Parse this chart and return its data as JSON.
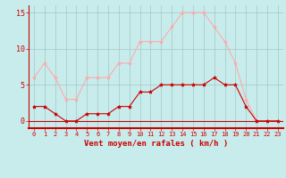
{
  "x": [
    0,
    1,
    2,
    3,
    4,
    5,
    6,
    7,
    8,
    9,
    10,
    11,
    12,
    13,
    14,
    15,
    16,
    17,
    18,
    19,
    20,
    21,
    22,
    23
  ],
  "wind_avg": [
    2,
    2,
    1,
    0,
    0,
    1,
    1,
    1,
    2,
    2,
    4,
    4,
    5,
    5,
    5,
    5,
    5,
    6,
    5,
    5,
    2,
    0,
    0,
    0
  ],
  "wind_gust": [
    6,
    8,
    6,
    3,
    3,
    6,
    6,
    6,
    8,
    8,
    11,
    11,
    11,
    13,
    15,
    15,
    15,
    13,
    11,
    8,
    3,
    0,
    0,
    0
  ],
  "bg_color": "#c8ecec",
  "grid_color": "#a0c8c8",
  "line_avg_color": "#cc0000",
  "line_gust_color": "#ffaaaa",
  "marker": "*",
  "xlabel": "Vent moyen/en rafales ( km/h )",
  "ylim": [
    -1,
    16
  ],
  "yticks": [
    0,
    5,
    10,
    15
  ],
  "xlim": [
    -0.5,
    23.5
  ],
  "tick_color": "#cc0000",
  "axis_color": "#cc0000",
  "xlabel_color": "#cc0000"
}
